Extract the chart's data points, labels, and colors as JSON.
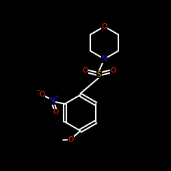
{
  "background_color": "#000000",
  "bond_color": "#ffffff",
  "atom_colors": {
    "O": "#ff2200",
    "N_morpholine": "#1a1aff",
    "S": "#ccaa00",
    "N_nitro": "#1a1aff",
    "O_nitro": "#ff2200",
    "C": "#ffffff"
  },
  "figsize": [
    2.5,
    2.5
  ],
  "dpi": 100,
  "lw": 1.5,
  "fontsize": 7.5
}
